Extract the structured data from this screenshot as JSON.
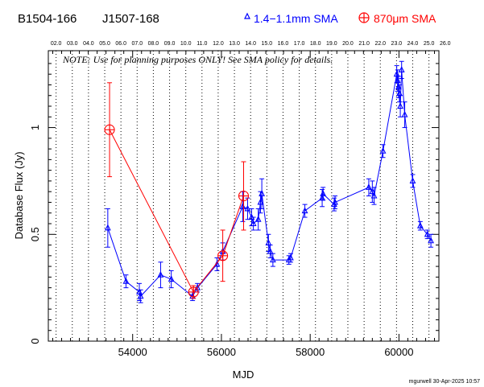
{
  "header": {
    "source_1": "B1504-166",
    "source_2": "J1507-168",
    "legend_blue": "1.4−1.1mm SMA",
    "legend_red": "870μm SMA"
  },
  "note": "NOTE: Use for planning purposes ONLY!  See SMA policy for details.",
  "footer": "mgurwell 30-Apr-2025 10:57",
  "chart_data": {
    "type": "scatter",
    "xlabel": "MJD",
    "ylabel": "Database Flux (Jy)",
    "xlim": [
      52100,
      60900
    ],
    "ylim": [
      0,
      1.36
    ],
    "x_ticks": [
      54000,
      56000,
      58000,
      60000
    ],
    "y_ticks": [
      0,
      0.5,
      1
    ],
    "y_tick_labels": [
      "0",
      "0.5",
      "1"
    ],
    "grid": "dotted vertical lines at each year boundary",
    "top_axis": {
      "labels": [
        "02.0",
        "03.0",
        "04.0",
        "05.0",
        "06.0",
        "07.0",
        "08.0",
        "09.0",
        "10.0",
        "11.0",
        "12.0",
        "13.0",
        "14.0",
        "15.0",
        "16.0",
        "17.0",
        "18.0",
        "19.0",
        "20.0",
        "21.0",
        "22.0",
        "23.0",
        "24.0",
        "25.0",
        "26.0"
      ],
      "mjd": [
        52275,
        52640,
        53005,
        53371,
        53736,
        54101,
        54466,
        54832,
        55197,
        55562,
        55927,
        56293,
        56658,
        57023,
        57388,
        57754,
        58119,
        58484,
        58849,
        59215,
        59580,
        59945,
        60310,
        60676,
        61041
      ]
    },
    "series": [
      {
        "name": "1.4−1.1mm SMA",
        "color": "#0000ff",
        "marker": "triangle",
        "points": [
          [
            53440,
            0.53,
            0.09
          ],
          [
            53850,
            0.28,
            0.03
          ],
          [
            54150,
            0.23,
            0.04
          ],
          [
            54180,
            0.21,
            0.03
          ],
          [
            54630,
            0.31,
            0.06
          ],
          [
            54870,
            0.29,
            0.04
          ],
          [
            55350,
            0.21,
            0.02
          ],
          [
            55460,
            0.25,
            0.02
          ],
          [
            55900,
            0.36,
            0.03
          ],
          [
            56030,
            0.42,
            0.04
          ],
          [
            56480,
            0.63,
            0.07
          ],
          [
            56590,
            0.62,
            0.05
          ],
          [
            56680,
            0.58,
            0.04
          ],
          [
            56720,
            0.55,
            0.03
          ],
          [
            56830,
            0.57,
            0.05
          ],
          [
            56880,
            0.65,
            0.05
          ],
          [
            56910,
            0.69,
            0.07
          ],
          [
            57060,
            0.46,
            0.04
          ],
          [
            57100,
            0.42,
            0.03
          ],
          [
            57160,
            0.38,
            0.03
          ],
          [
            57520,
            0.38,
            0.02
          ],
          [
            57560,
            0.39,
            0.02
          ],
          [
            57880,
            0.61,
            0.03
          ],
          [
            58270,
            0.67,
            0.04
          ],
          [
            58290,
            0.69,
            0.03
          ],
          [
            58540,
            0.64,
            0.03
          ],
          [
            58560,
            0.65,
            0.03
          ],
          [
            59320,
            0.72,
            0.04
          ],
          [
            59400,
            0.7,
            0.05
          ],
          [
            59440,
            0.68,
            0.04
          ],
          [
            59640,
            0.89,
            0.03
          ],
          [
            59950,
            1.25,
            0.04
          ],
          [
            59970,
            1.22,
            0.05
          ],
          [
            59990,
            1.19,
            0.05
          ],
          [
            60010,
            1.16,
            0.04
          ],
          [
            60030,
            1.1,
            0.05
          ],
          [
            60060,
            1.27,
            0.04
          ],
          [
            60130,
            1.06,
            0.06
          ],
          [
            60310,
            0.75,
            0.03
          ],
          [
            60480,
            0.54,
            0.02
          ],
          [
            60640,
            0.5,
            0.02
          ],
          [
            60720,
            0.47,
            0.03
          ]
        ]
      },
      {
        "name": "870μm SMA",
        "color": "#ff0000",
        "marker": "circle-plus",
        "points": [
          [
            53480,
            0.99,
            0.22
          ],
          [
            55370,
            0.23,
            0.03
          ],
          [
            56030,
            0.4,
            0.12
          ],
          [
            56500,
            0.68,
            0.16
          ]
        ]
      }
    ]
  }
}
